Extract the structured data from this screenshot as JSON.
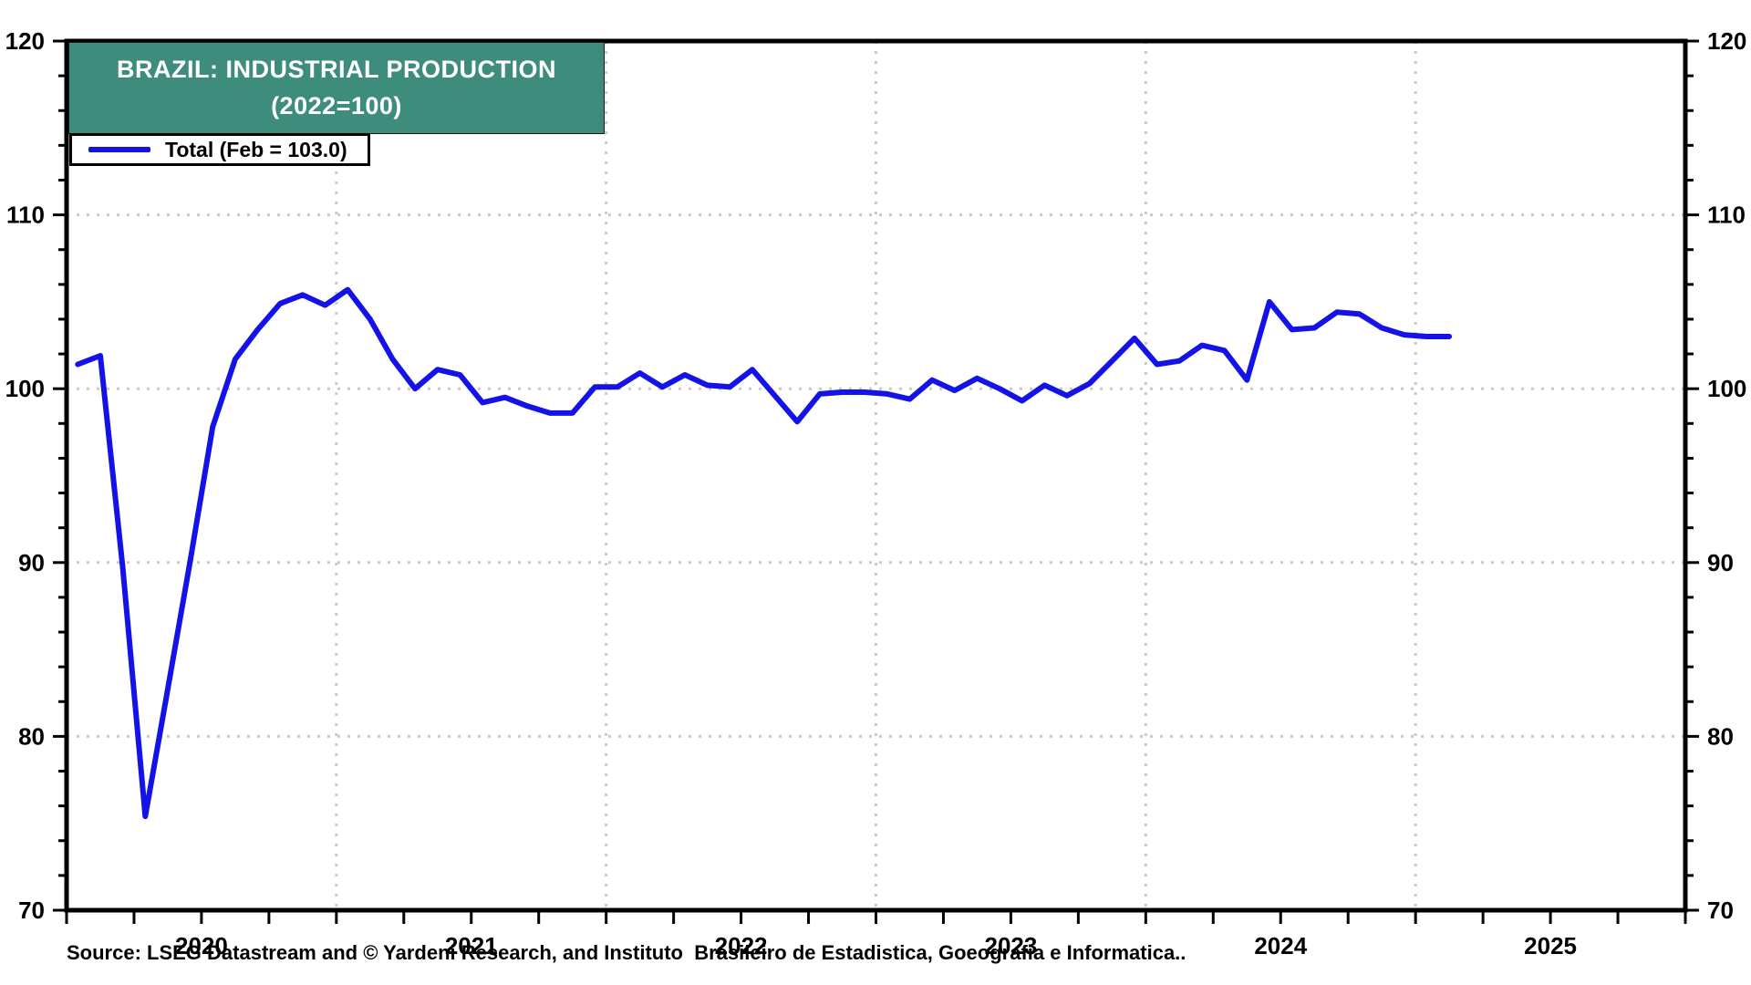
{
  "title": {
    "line1": "BRAZIL: INDUSTRIAL PRODUCTION",
    "line2": "(2022=100)"
  },
  "legend": {
    "label": "Total (Feb = 103.0)"
  },
  "source": {
    "text": "Source: LSEG Datastream and © Yardeni Research, and Instituto  Brasileiro de Estadistica, Goeografia e Informatica.."
  },
  "colors": {
    "line": "#1313e8",
    "title_bg": "#3d8c7c",
    "title_text": "#ffffff",
    "grid": "#c9c9c9",
    "axis": "#000000",
    "background": "#ffffff"
  },
  "chart_data": {
    "type": "line",
    "title": "BRAZIL: INDUSTRIAL PRODUCTION (2022=100)",
    "legend_entries": [
      "Total (Feb = 103.0)"
    ],
    "frequency": "monthly",
    "x_axis_span": [
      "2020-01",
      "2026-01"
    ],
    "ylim": [
      70,
      120
    ],
    "y_major_ticks": [
      70,
      80,
      90,
      100,
      110,
      120
    ],
    "y_minor_tick_step": 2,
    "x_minor_tick_step_months": 3,
    "x_year_labels": [
      "2020",
      "2021",
      "2022",
      "2023",
      "2024",
      "2025"
    ],
    "grid": "dotted",
    "gridlines_vertical_at": [
      "2021-01",
      "2022-01",
      "2023-01",
      "2024-01",
      "2025-01"
    ],
    "gridlines_horizontal_at": [
      80,
      90,
      100,
      110
    ],
    "legend_position": "top-left",
    "months": [
      "2020-01",
      "2020-02",
      "2020-03",
      "2020-04",
      "2020-05",
      "2020-06",
      "2020-07",
      "2020-08",
      "2020-09",
      "2020-10",
      "2020-11",
      "2020-12",
      "2021-01",
      "2021-02",
      "2021-03",
      "2021-04",
      "2021-05",
      "2021-06",
      "2021-07",
      "2021-08",
      "2021-09",
      "2021-10",
      "2021-11",
      "2021-12",
      "2022-01",
      "2022-02",
      "2022-03",
      "2022-04",
      "2022-05",
      "2022-06",
      "2022-07",
      "2022-08",
      "2022-09",
      "2022-10",
      "2022-11",
      "2022-12",
      "2023-01",
      "2023-02",
      "2023-03",
      "2023-04",
      "2023-05",
      "2023-06",
      "2023-07",
      "2023-08",
      "2023-09",
      "2023-10",
      "2023-11",
      "2023-12",
      "2024-01",
      "2024-02",
      "2024-03",
      "2024-04",
      "2024-05",
      "2024-06",
      "2024-07",
      "2024-08",
      "2024-09",
      "2024-10",
      "2024-11",
      "2024-12",
      "2025-01",
      "2025-02"
    ],
    "series": [
      {
        "name": "Total (Feb = 103.0)",
        "values": [
          101.4,
          101.9,
          89.7,
          75.4,
          82.7,
          90.1,
          97.8,
          101.7,
          103.4,
          104.9,
          105.4,
          104.8,
          105.7,
          104.0,
          101.7,
          100.0,
          101.1,
          100.8,
          99.2,
          99.5,
          99.0,
          98.6,
          98.6,
          100.1,
          100.1,
          100.9,
          100.1,
          100.8,
          100.2,
          100.1,
          101.1,
          99.6,
          98.1,
          99.7,
          99.8,
          99.8,
          99.7,
          99.4,
          100.5,
          99.9,
          100.6,
          100.0,
          99.3,
          100.2,
          99.6,
          100.3,
          101.6,
          102.9,
          101.4,
          101.6,
          102.5,
          102.2,
          100.5,
          105.0,
          103.4,
          103.5,
          104.4,
          104.3,
          103.5,
          103.1,
          103.0,
          103.0
        ]
      }
    ]
  }
}
